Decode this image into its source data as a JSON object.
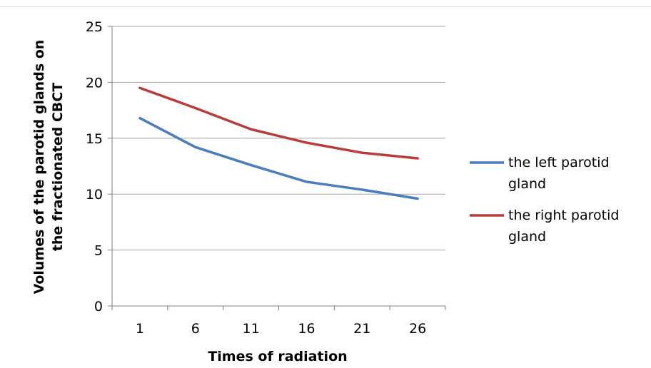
{
  "chart_data": {
    "type": "line",
    "title": "",
    "xlabel": "Times of radiation",
    "ylabel": [
      "Volumes of the parotid glands on",
      "the fractionated CBCT"
    ],
    "categories": [
      "1",
      "6",
      "11",
      "16",
      "21",
      "26"
    ],
    "ylim": [
      0,
      25
    ],
    "yticks": [
      "0",
      "5",
      "10",
      "15",
      "20",
      "25"
    ],
    "grid": "horizontal",
    "legend_position": "right",
    "series": [
      {
        "name": "the left parotid gland",
        "legend_lines": [
          "the left parotid",
          "gland"
        ],
        "color": "#4a7dbf",
        "values": [
          16.8,
          14.2,
          12.6,
          11.1,
          10.4,
          9.6
        ]
      },
      {
        "name": "the right parotid gland",
        "legend_lines": [
          "the right parotid",
          "gland"
        ],
        "color": "#b83c3a",
        "values": [
          19.5,
          17.7,
          15.8,
          14.6,
          13.7,
          13.2
        ]
      }
    ]
  }
}
